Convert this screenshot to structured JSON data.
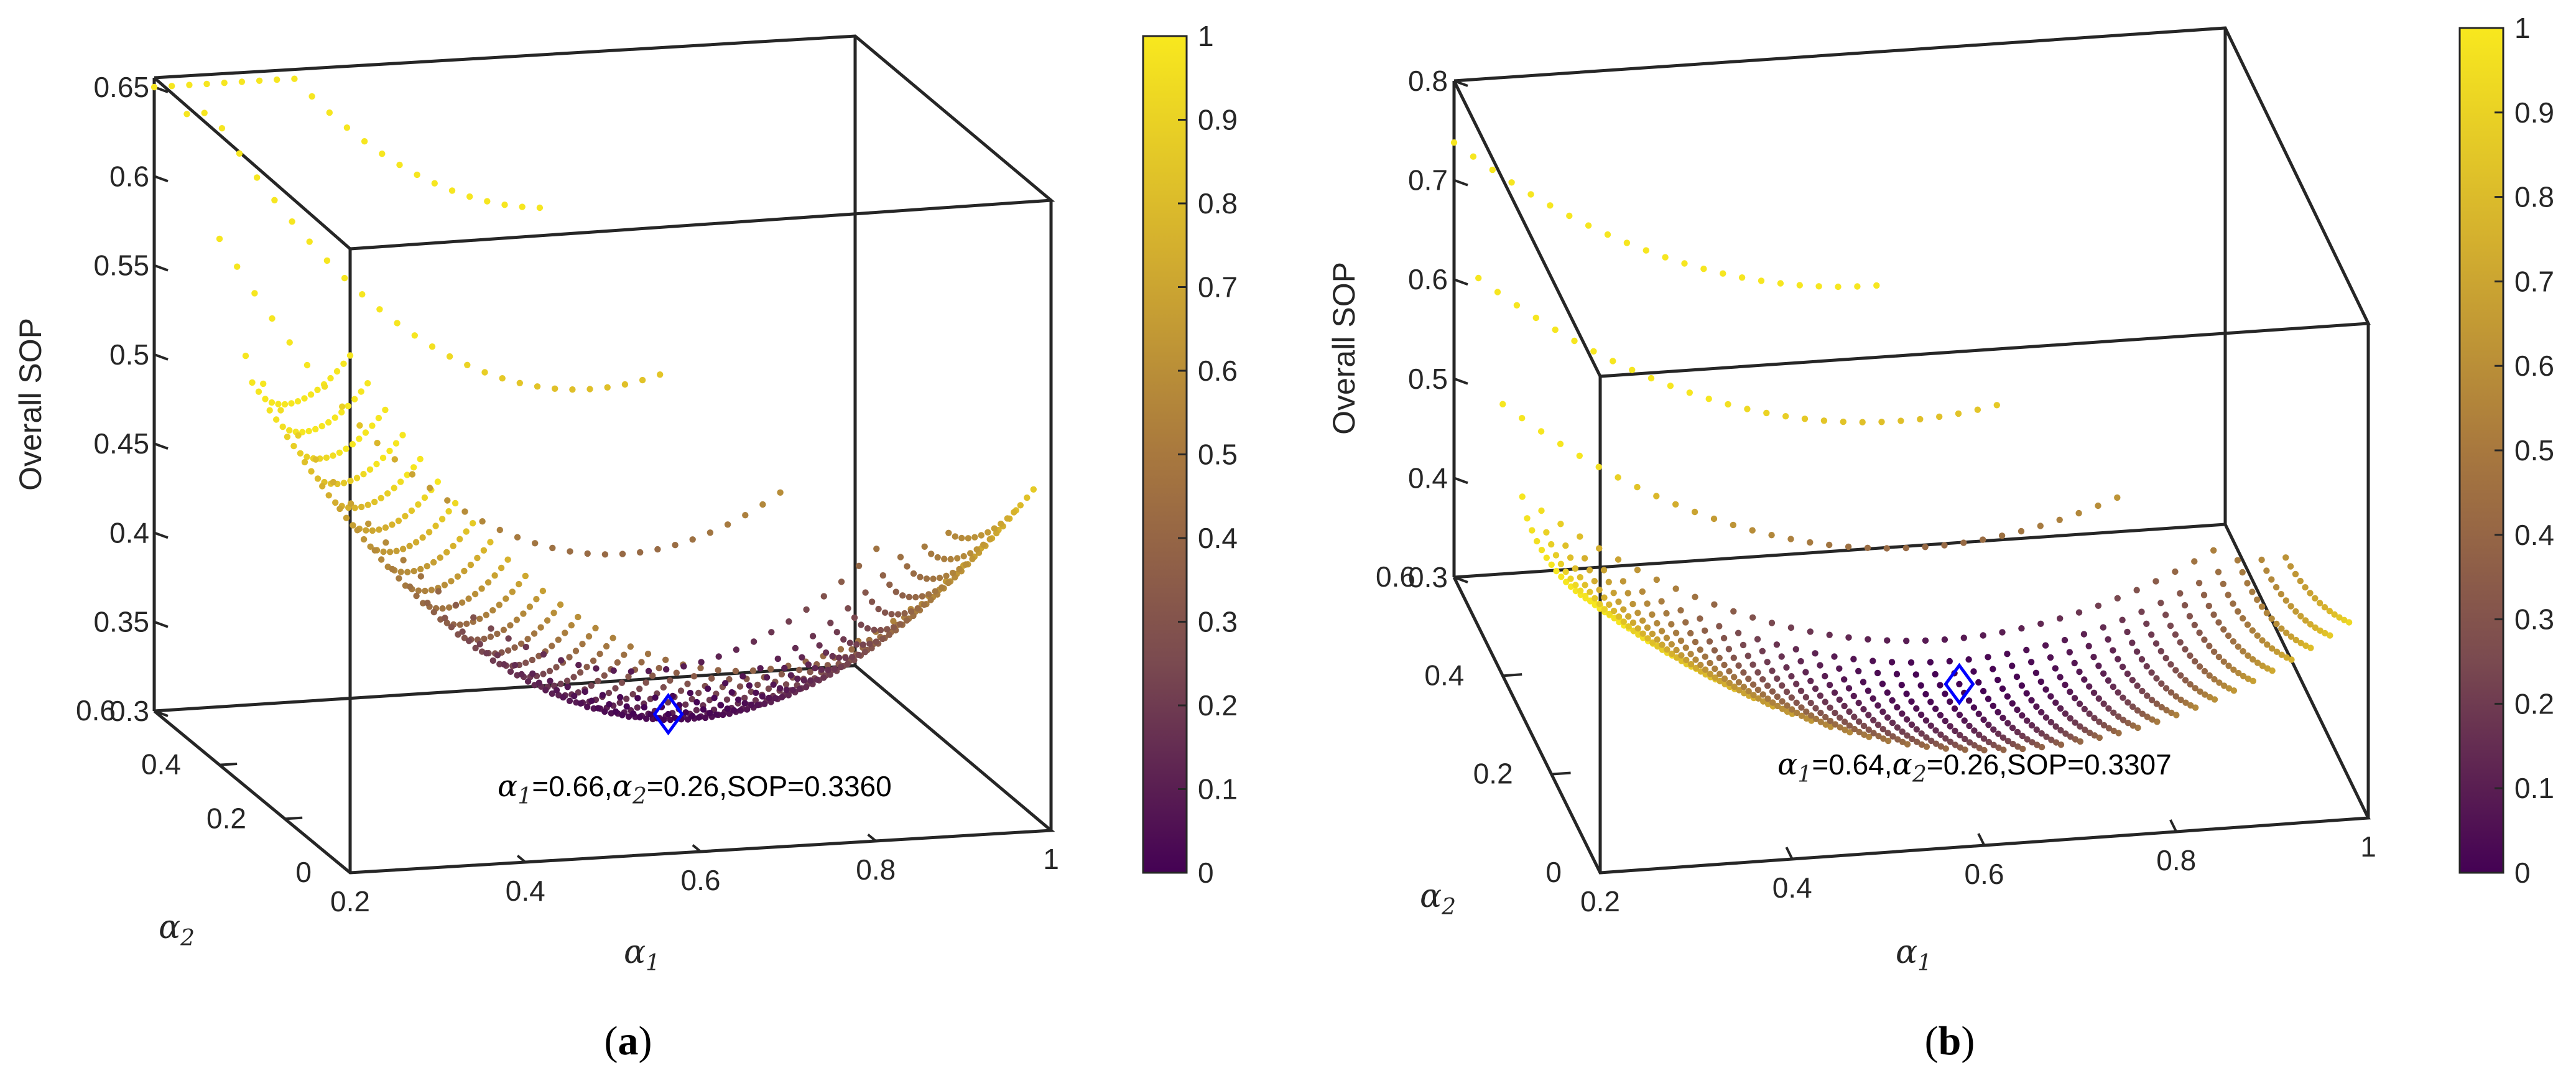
{
  "chart_data": [
    {
      "panel": "a",
      "caption_letter": "a",
      "type": "scatter",
      "zlabel": "Overall SOP",
      "xlabel_symbol": "α",
      "xlabel_sub": "1",
      "ylabel_symbol": "α",
      "ylabel_sub": "2",
      "xlim": [
        0.2,
        1
      ],
      "ylim": [
        0,
        0.6
      ],
      "zlim": [
        0.3,
        0.65
      ],
      "x_ticks": [
        "0.2",
        "0.4",
        "0.6",
        "0.8",
        "1"
      ],
      "y_ticks": [
        "0",
        "0.2",
        "0.4",
        "0.6"
      ],
      "z_ticks": [
        "0.3",
        "0.35",
        "0.4",
        "0.45",
        "0.5",
        "0.55",
        "0.6",
        "0.65"
      ],
      "colorbar": {
        "min": 0,
        "max": 1,
        "ticks": [
          "0",
          "0.1",
          "0.2",
          "0.3",
          "0.4",
          "0.5",
          "0.6",
          "0.7",
          "0.8",
          "0.9",
          "1"
        ]
      },
      "colormap": [
        "#440154",
        "#7a4a50",
        "#b0853c",
        "#d7b22c",
        "#f6e620"
      ],
      "surface": {
        "alpha1_step": 0.02,
        "alpha2_step": 0.02,
        "alpha2_dense_max": 0.3,
        "extra_alpha2_rows": [
          0.32,
          0.4,
          0.5,
          0.6
        ]
      },
      "optimum": {
        "alpha1": 0.66,
        "alpha2": 0.26,
        "sop": 0.336
      },
      "annotation": {
        "a1_symbol": "α",
        "a1_sub": "1",
        "a1_text": "=0.66,",
        "a2_symbol": "α",
        "a2_sub": "2",
        "a2_text": "=0.26,SOP=0.3360"
      }
    },
    {
      "panel": "b",
      "caption_letter": "b",
      "type": "scatter",
      "zlabel": "Overall SOP",
      "xlabel_symbol": "α",
      "xlabel_sub": "1",
      "ylabel_symbol": "α",
      "ylabel_sub": "2",
      "xlim": [
        0.2,
        1
      ],
      "ylim": [
        0,
        0.6
      ],
      "zlim": [
        0.3,
        0.8
      ],
      "x_ticks": [
        "0.2",
        "0.4",
        "0.6",
        "0.8",
        "1"
      ],
      "y_ticks": [
        "0",
        "0.2",
        "0.4",
        "0.6"
      ],
      "z_ticks": [
        "0.3",
        "0.4",
        "0.5",
        "0.6",
        "0.7",
        "0.8"
      ],
      "colorbar": {
        "min": 0,
        "max": 1,
        "ticks": [
          "0",
          "0.1",
          "0.2",
          "0.3",
          "0.4",
          "0.5",
          "0.6",
          "0.7",
          "0.8",
          "0.9",
          "1"
        ]
      },
      "colormap": [
        "#440154",
        "#7a4a50",
        "#b0853c",
        "#d7b22c",
        "#f6e620"
      ],
      "surface": {
        "alpha1_step": 0.02,
        "alpha2_step": 0.02,
        "alpha2_dense_max": 0.3,
        "extra_alpha2_rows": [
          0.32,
          0.4,
          0.5,
          0.6
        ]
      },
      "optimum": {
        "alpha1": 0.64,
        "alpha2": 0.26,
        "sop": 0.3307
      },
      "annotation": {
        "a1_symbol": "α",
        "a1_sub": "1",
        "a1_text": "=0.64,",
        "a2_symbol": "α",
        "a2_sub": "2",
        "a2_text": "=0.26,SOP=0.3307"
      }
    }
  ]
}
